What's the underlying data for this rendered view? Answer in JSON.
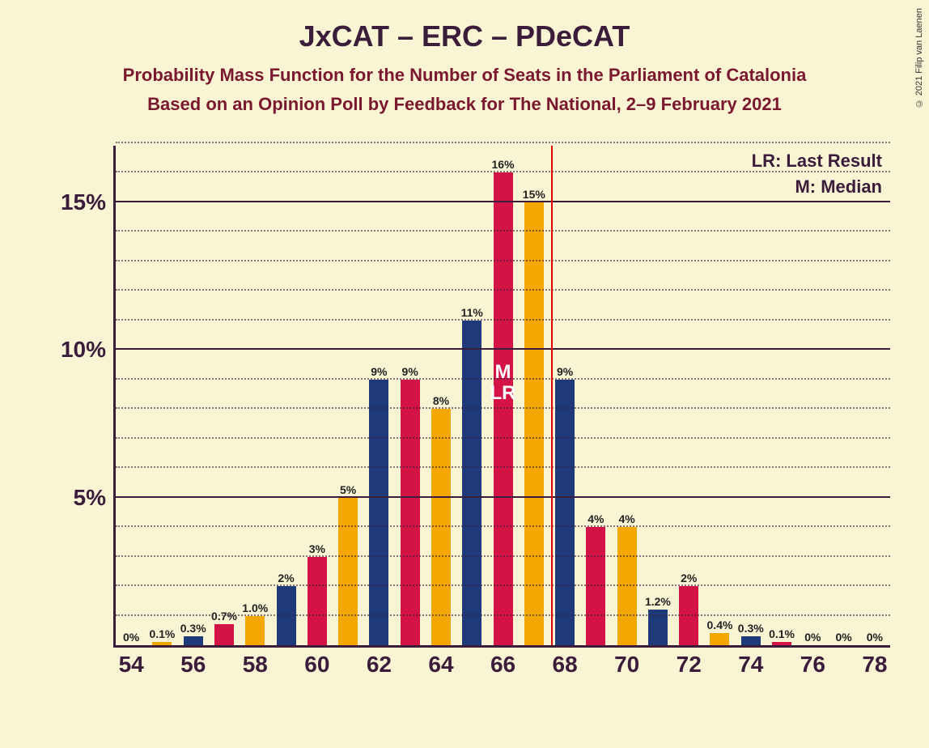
{
  "copyright": "© 2021 Filip van Laenen",
  "title": "JxCAT – ERC – PDeCAT",
  "subtitle1": "Probability Mass Function for the Number of Seats in the Parliament of Catalonia",
  "subtitle2": "Based on an Opinion Poll by Feedback for The National, 2–9 February 2021",
  "legend": {
    "lr": "LR: Last Result",
    "m": "M: Median"
  },
  "chart": {
    "type": "bar",
    "background_color": "#f9f4d4",
    "axis_color": "#3b1d3b",
    "grid_color": "#3b1d3b",
    "text_color": "#3b1d3b",
    "series_colors": [
      "#1f3a7a",
      "#d31245",
      "#f4a700"
    ],
    "ylim": [
      0,
      17
    ],
    "ymax_plot": 17,
    "y_major_ticks": [
      5,
      10,
      15
    ],
    "y_major_labels": [
      "5%",
      "10%",
      "15%"
    ],
    "y_minor_step": 1,
    "median_line_color": "#e20000",
    "median_x_position": 67.5,
    "median_annot_m": "M",
    "median_annot_lr": "LR",
    "median_annot_group_index": 12,
    "median_annot_bar_index": 1,
    "x_label_every": 2,
    "categories": [
      54,
      55,
      56,
      57,
      58,
      59,
      60,
      61,
      62,
      63,
      64,
      65,
      66,
      67,
      68,
      69,
      70,
      71,
      72,
      73,
      74,
      75,
      76,
      77,
      78
    ],
    "data": [
      {
        "x": 54,
        "v": [
          null,
          null,
          0
        ],
        "l": [
          null,
          null,
          "0%"
        ]
      },
      {
        "x": 55,
        "v": [
          null,
          null,
          0.1
        ],
        "l": [
          null,
          null,
          "0.1%"
        ]
      },
      {
        "x": 56,
        "v": [
          0.3,
          null,
          null
        ],
        "l": [
          "0.3%",
          null,
          null
        ]
      },
      {
        "x": 57,
        "v": [
          null,
          0.7,
          null
        ],
        "l": [
          null,
          "0.7%",
          null
        ]
      },
      {
        "x": 58,
        "v": [
          null,
          null,
          1.0
        ],
        "l": [
          null,
          null,
          "1.0%"
        ]
      },
      {
        "x": 59,
        "v": [
          2,
          null,
          null
        ],
        "l": [
          "2%",
          null,
          null
        ]
      },
      {
        "x": 60,
        "v": [
          null,
          3,
          null
        ],
        "l": [
          null,
          "3%",
          null
        ]
      },
      {
        "x": 61,
        "v": [
          null,
          null,
          5
        ],
        "l": [
          null,
          null,
          "5%"
        ]
      },
      {
        "x": 62,
        "v": [
          9,
          null,
          null
        ],
        "l": [
          "9%",
          null,
          null
        ]
      },
      {
        "x": 63,
        "v": [
          null,
          9,
          null
        ],
        "l": [
          null,
          "9%",
          null
        ]
      },
      {
        "x": 64,
        "v": [
          null,
          null,
          8
        ],
        "l": [
          null,
          null,
          "8%"
        ]
      },
      {
        "x": 65,
        "v": [
          11,
          null,
          null
        ],
        "l": [
          "11%",
          null,
          null
        ]
      },
      {
        "x": 66,
        "v": [
          null,
          16,
          null
        ],
        "l": [
          null,
          "16%",
          null
        ]
      },
      {
        "x": 67,
        "v": [
          null,
          null,
          15
        ],
        "l": [
          null,
          null,
          "15%"
        ]
      },
      {
        "x": 68,
        "v": [
          9,
          null,
          null
        ],
        "l": [
          "9%",
          null,
          null
        ]
      },
      {
        "x": 69,
        "v": [
          null,
          4,
          null
        ],
        "l": [
          null,
          "4%",
          null
        ]
      },
      {
        "x": 70,
        "v": [
          null,
          null,
          4
        ],
        "l": [
          null,
          null,
          "4%"
        ]
      },
      {
        "x": 71,
        "v": [
          1.2,
          null,
          null
        ],
        "l": [
          "1.2%",
          null,
          null
        ]
      },
      {
        "x": 72,
        "v": [
          null,
          2,
          null
        ],
        "l": [
          null,
          "2%",
          null
        ]
      },
      {
        "x": 73,
        "v": [
          null,
          null,
          0.4
        ],
        "l": [
          null,
          null,
          "0.4%"
        ]
      },
      {
        "x": 74,
        "v": [
          0.3,
          null,
          null
        ],
        "l": [
          "0.3%",
          null,
          null
        ]
      },
      {
        "x": 75,
        "v": [
          null,
          0.1,
          null
        ],
        "l": [
          null,
          "0.1%",
          null
        ]
      },
      {
        "x": 76,
        "v": [
          null,
          null,
          0
        ],
        "l": [
          null,
          null,
          "0%"
        ]
      },
      {
        "x": 77,
        "v": [
          null,
          null,
          0
        ],
        "l": [
          null,
          null,
          "0%"
        ]
      },
      {
        "x": 78,
        "v": [
          null,
          null,
          0
        ],
        "l": [
          null,
          null,
          "0%"
        ]
      }
    ]
  }
}
